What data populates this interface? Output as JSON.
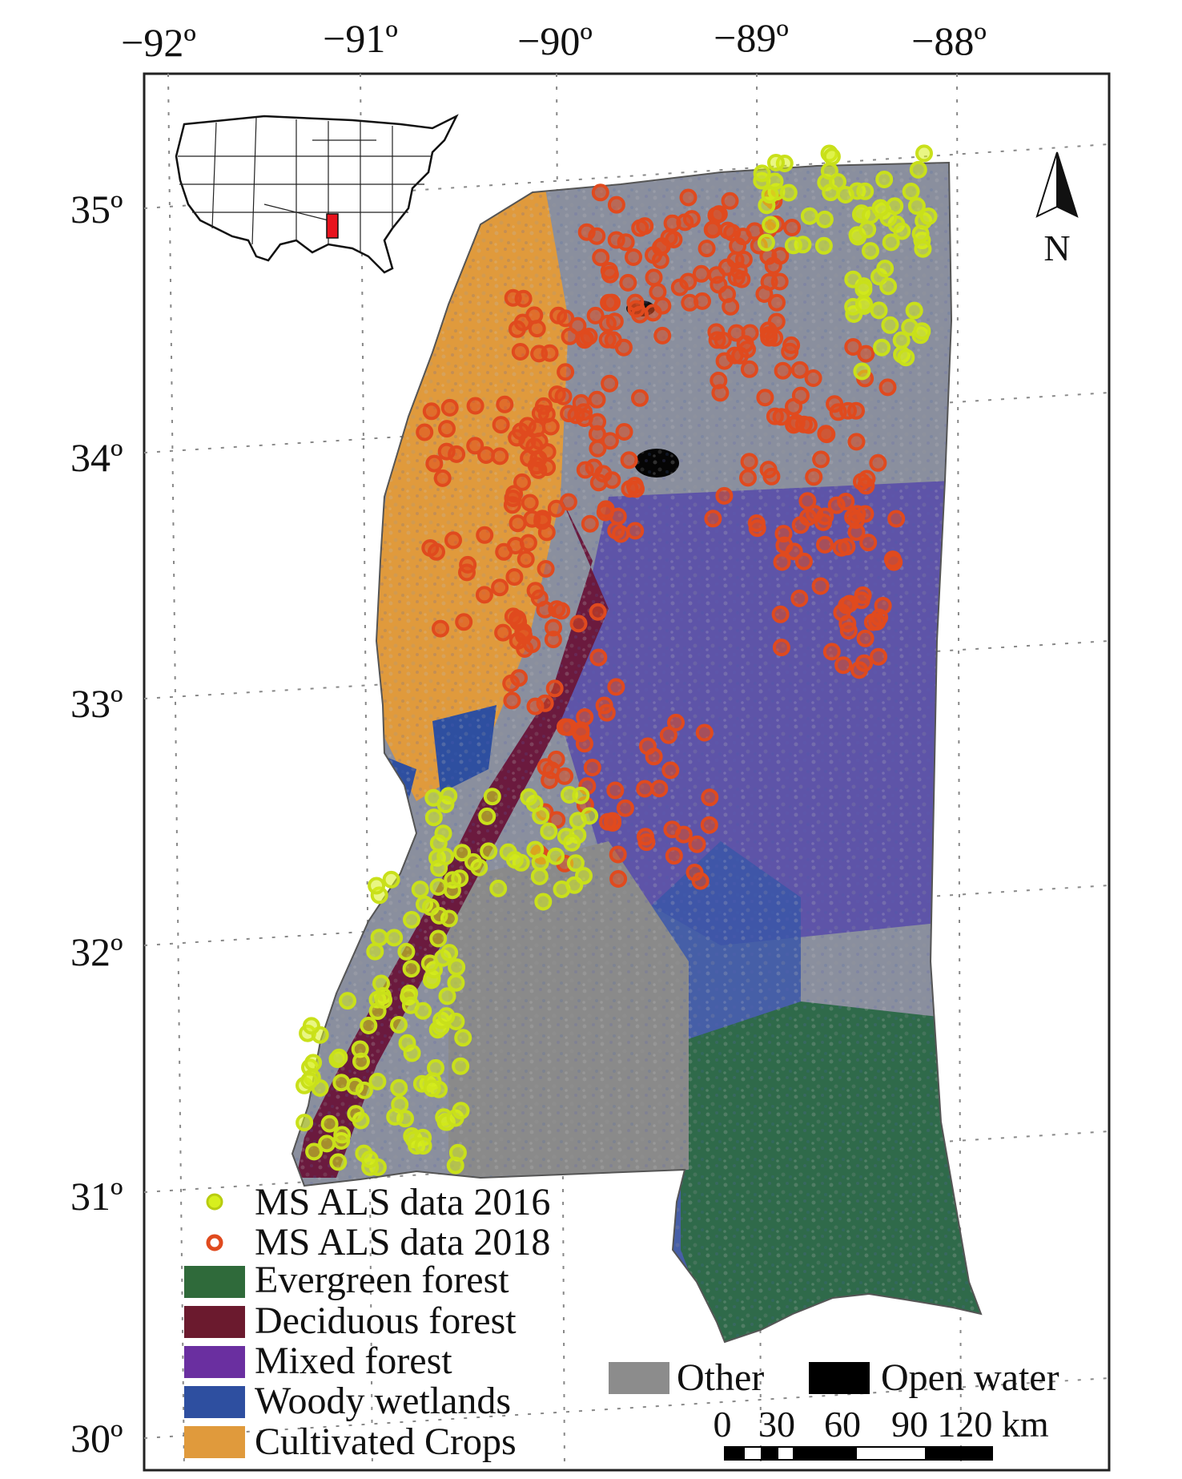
{
  "map": {
    "longitude_labels": [
      "−92º",
      "−91º",
      "−90º",
      "−89º",
      "−88º"
    ],
    "latitude_labels": [
      "35º",
      "34º",
      "33º",
      "32º",
      "31º",
      "30º"
    ],
    "north_label": "N",
    "colors": {
      "evergreen": "#2f6a3a",
      "deciduous": "#6b1a2e",
      "mixed": "#6a2fa0",
      "wetlands": "#2e4fa0",
      "crops": "#e09a3c",
      "other": "#8c8c8c",
      "water": "#000000",
      "als2016": "#d7ef1e",
      "als2018": "#e04a1e",
      "inset_highlight": "#e8141e"
    },
    "legend": {
      "als_2016": "MS ALS data 2016",
      "als_2018": "MS ALS data 2018",
      "evergreen": "Evergreen forest",
      "deciduous": "Deciduous forest",
      "mixed": "Mixed forest",
      "wetlands": "Woody wetlands",
      "crops": "Cultivated Crops",
      "other": "Other",
      "water": "Open water"
    },
    "scale_bar": {
      "ticks": [
        "0",
        "30",
        "60",
        "90",
        "120 km"
      ]
    }
  }
}
